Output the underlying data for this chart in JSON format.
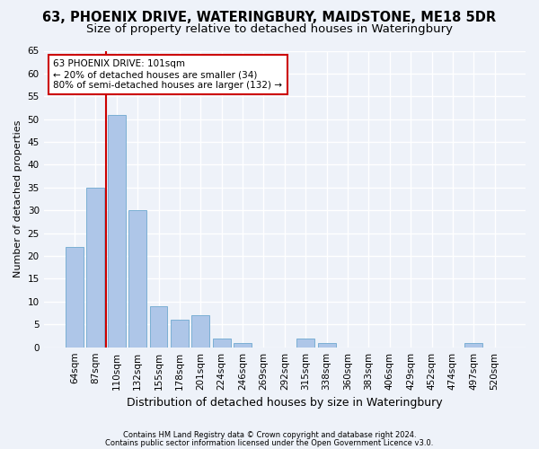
{
  "title1": "63, PHOENIX DRIVE, WATERINGBURY, MAIDSTONE, ME18 5DR",
  "title2": "Size of property relative to detached houses in Wateringbury",
  "xlabel": "Distribution of detached houses by size in Wateringbury",
  "ylabel": "Number of detached properties",
  "bar_labels": [
    "64sqm",
    "87sqm",
    "110sqm",
    "132sqm",
    "155sqm",
    "178sqm",
    "201sqm",
    "224sqm",
    "246sqm",
    "269sqm",
    "292sqm",
    "315sqm",
    "338sqm",
    "360sqm",
    "383sqm",
    "406sqm",
    "429sqm",
    "452sqm",
    "474sqm",
    "497sqm",
    "520sqm"
  ],
  "bar_values": [
    22,
    35,
    51,
    30,
    9,
    6,
    7,
    2,
    1,
    0,
    0,
    2,
    1,
    0,
    0,
    0,
    0,
    0,
    0,
    1,
    0
  ],
  "bar_color": "#aec6e8",
  "bar_edgecolor": "#7bafd4",
  "vline_color": "#cc0000",
  "vline_x": 1.5,
  "ylim": [
    0,
    65
  ],
  "yticks": [
    0,
    5,
    10,
    15,
    20,
    25,
    30,
    35,
    40,
    45,
    50,
    55,
    60,
    65
  ],
  "annotation_line1": "63 PHOENIX DRIVE: 101sqm",
  "annotation_line2": "← 20% of detached houses are smaller (34)",
  "annotation_line3": "80% of semi-detached houses are larger (132) →",
  "annotation_box_color": "#ffffff",
  "annotation_box_edgecolor": "#cc0000",
  "footer1": "Contains HM Land Registry data © Crown copyright and database right 2024.",
  "footer2": "Contains public sector information licensed under the Open Government Licence v3.0.",
  "bg_color": "#eef2f9",
  "grid_color": "#ffffff",
  "title1_fontsize": 10.5,
  "title2_fontsize": 9.5,
  "ylabel_fontsize": 8,
  "xlabel_fontsize": 9,
  "tick_fontsize": 7.5,
  "annotation_fontsize": 7.5,
  "footer_fontsize": 6
}
